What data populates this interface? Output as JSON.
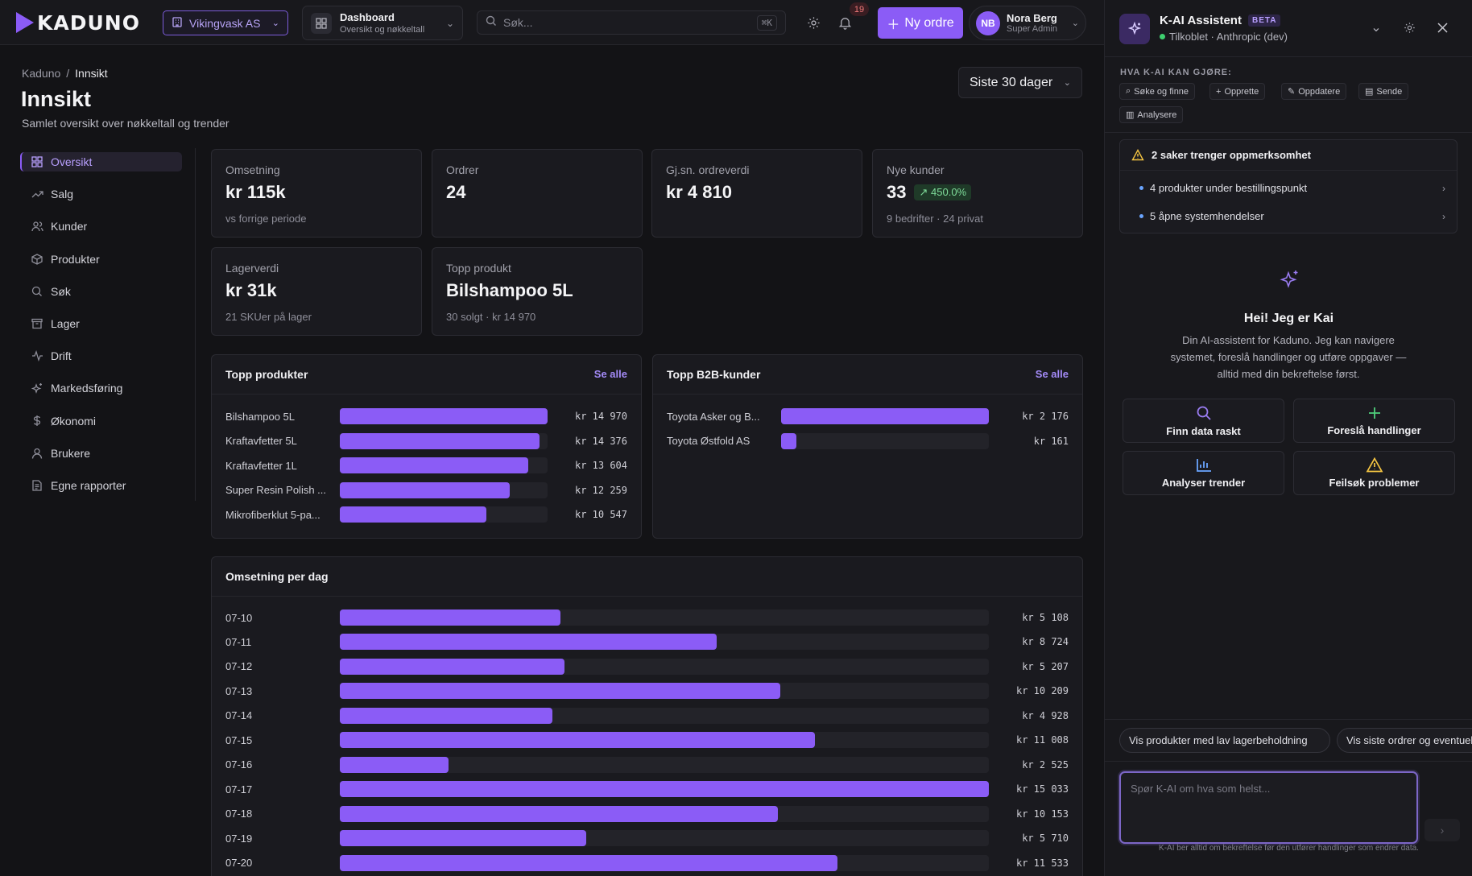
{
  "header": {
    "logo_text": "KADUNO",
    "company": "Vikingvask AS",
    "dashboard": {
      "title": "Dashboard",
      "subtitle": "Oversikt og nøkkeltall"
    },
    "search": {
      "placeholder": "Søk...",
      "shortcut": "⌘K"
    },
    "notifications_count": "19",
    "new_order_label": "Ny ordre",
    "user": {
      "initials": "NB",
      "name": "Nora Berg",
      "role": "Super Admin"
    }
  },
  "page": {
    "breadcrumb": [
      "Kaduno",
      "Innsikt"
    ],
    "title": "Innsikt",
    "subtitle": "Samlet oversikt over nøkkeltall og trender",
    "range": "Siste 30 dager"
  },
  "nav": {
    "items": [
      {
        "label": "Oversikt",
        "icon": "grid-icon",
        "active": true
      },
      {
        "label": "Salg",
        "icon": "trend-icon"
      },
      {
        "label": "Kunder",
        "icon": "users-icon"
      },
      {
        "label": "Produkter",
        "icon": "box-icon"
      },
      {
        "label": "Søk",
        "icon": "search-icon"
      },
      {
        "label": "Lager",
        "icon": "archive-icon"
      },
      {
        "label": "Drift",
        "icon": "pulse-icon"
      },
      {
        "label": "Markedsføring",
        "icon": "sparkle-icon"
      },
      {
        "label": "Økonomi",
        "icon": "dollar-icon"
      },
      {
        "label": "Brukere",
        "icon": "user-icon"
      },
      {
        "label": "Egne rapporter",
        "icon": "document-icon"
      }
    ]
  },
  "stats": {
    "revenue": {
      "label": "Omsetning",
      "value": "kr 115k",
      "sub": "vs forrige periode"
    },
    "orders": {
      "label": "Ordrer",
      "value": "24"
    },
    "aov": {
      "label": "Gj.sn. ordreverdi",
      "value": "kr 4 810"
    },
    "new_customers": {
      "label": "Nye kunder",
      "value": "33",
      "trend": "450.0%",
      "sub": "9 bedrifter · 24 privat"
    },
    "inventory": {
      "label": "Lagerverdi",
      "value": "kr 31k",
      "sub": "21 SKUer på lager"
    },
    "top_product": {
      "label": "Topp produkt",
      "value": "Bilshampoo 5L",
      "sub": "30 solgt · kr 14 970"
    }
  },
  "top_products": {
    "title": "Topp produkter",
    "link": "Se alle",
    "rows": [
      {
        "label": "Bilshampoo 5L",
        "value": "kr 14 970",
        "amount": 14970
      },
      {
        "label": "Kraftavfetter 5L",
        "value": "kr 14 376",
        "amount": 14376
      },
      {
        "label": "Kraftavfetter 1L",
        "value": "kr 13 604",
        "amount": 13604
      },
      {
        "label": "Super Resin Polish ...",
        "value": "kr 12 259",
        "amount": 12259
      },
      {
        "label": "Mikrofiberklut 5-pa...",
        "value": "kr 10 547",
        "amount": 10547
      }
    ]
  },
  "top_b2b": {
    "title": "Topp B2B-kunder",
    "link": "Se alle",
    "rows": [
      {
        "label": "Toyota Asker og B...",
        "value": "kr 2 176",
        "amount": 2176
      },
      {
        "label": "Toyota Østfold AS",
        "value": "kr 161",
        "amount": 161
      }
    ]
  },
  "daily_revenue": {
    "title": "Omsetning per dag",
    "rows": [
      {
        "label": "07-10",
        "value": "kr 5 108",
        "amount": 5108
      },
      {
        "label": "07-11",
        "value": "kr 8 724",
        "amount": 8724
      },
      {
        "label": "07-12",
        "value": "kr 5 207",
        "amount": 5207
      },
      {
        "label": "07-13",
        "value": "kr 10 209",
        "amount": 10209
      },
      {
        "label": "07-14",
        "value": "kr 4 928",
        "amount": 4928
      },
      {
        "label": "07-15",
        "value": "kr 11 008",
        "amount": 11008
      },
      {
        "label": "07-16",
        "value": "kr 2 525",
        "amount": 2525
      },
      {
        "label": "07-17",
        "value": "kr 15 033",
        "amount": 15033
      },
      {
        "label": "07-18",
        "value": "kr 10 153",
        "amount": 10153
      },
      {
        "label": "07-19",
        "value": "kr 5 710",
        "amount": 5710
      },
      {
        "label": "07-20",
        "value": "kr 11 533",
        "amount": 11533
      }
    ]
  },
  "assistant": {
    "title": "K-AI Assistent",
    "beta": "BETA",
    "status": "Tilkoblet · Anthropic (dev)",
    "can_do_title": "HVA K-AI KAN GJØRE:",
    "capabilities": [
      "Søke og finne",
      "Opprette",
      "Oppdatere",
      "Sende",
      "Analysere"
    ],
    "attention": {
      "title": "2 saker trenger oppmerksomhet",
      "items": [
        "4 produkter under bestillingspunkt",
        "5 åpne systemhendelser"
      ]
    },
    "hello_title": "Hei! Jeg er Kai",
    "hello_text": "Din AI-assistent for Kaduno. Jeg kan navigere systemet, foreslå handlinger og utføre oppgaver — alltid med din bekreftelse først.",
    "quick_actions": [
      "Finn data raskt",
      "Foreslå handlinger",
      "Analyser trender",
      "Feilsøk problemer"
    ],
    "suggestions": [
      "Vis produkter med lav lagerbeholdning",
      "Vis siste ordrer og eventuelle"
    ],
    "input_placeholder": "Spør K-AI om hva som helst...",
    "footer": "K-AI ber alltid om bekreftelse før den utfører handlinger som endrer data."
  },
  "colors": {
    "accent": "#8b5cf6",
    "background": "#131316",
    "card": "#1a1a1f",
    "positive": "#7fdc9a",
    "online": "#3ecf6f"
  }
}
